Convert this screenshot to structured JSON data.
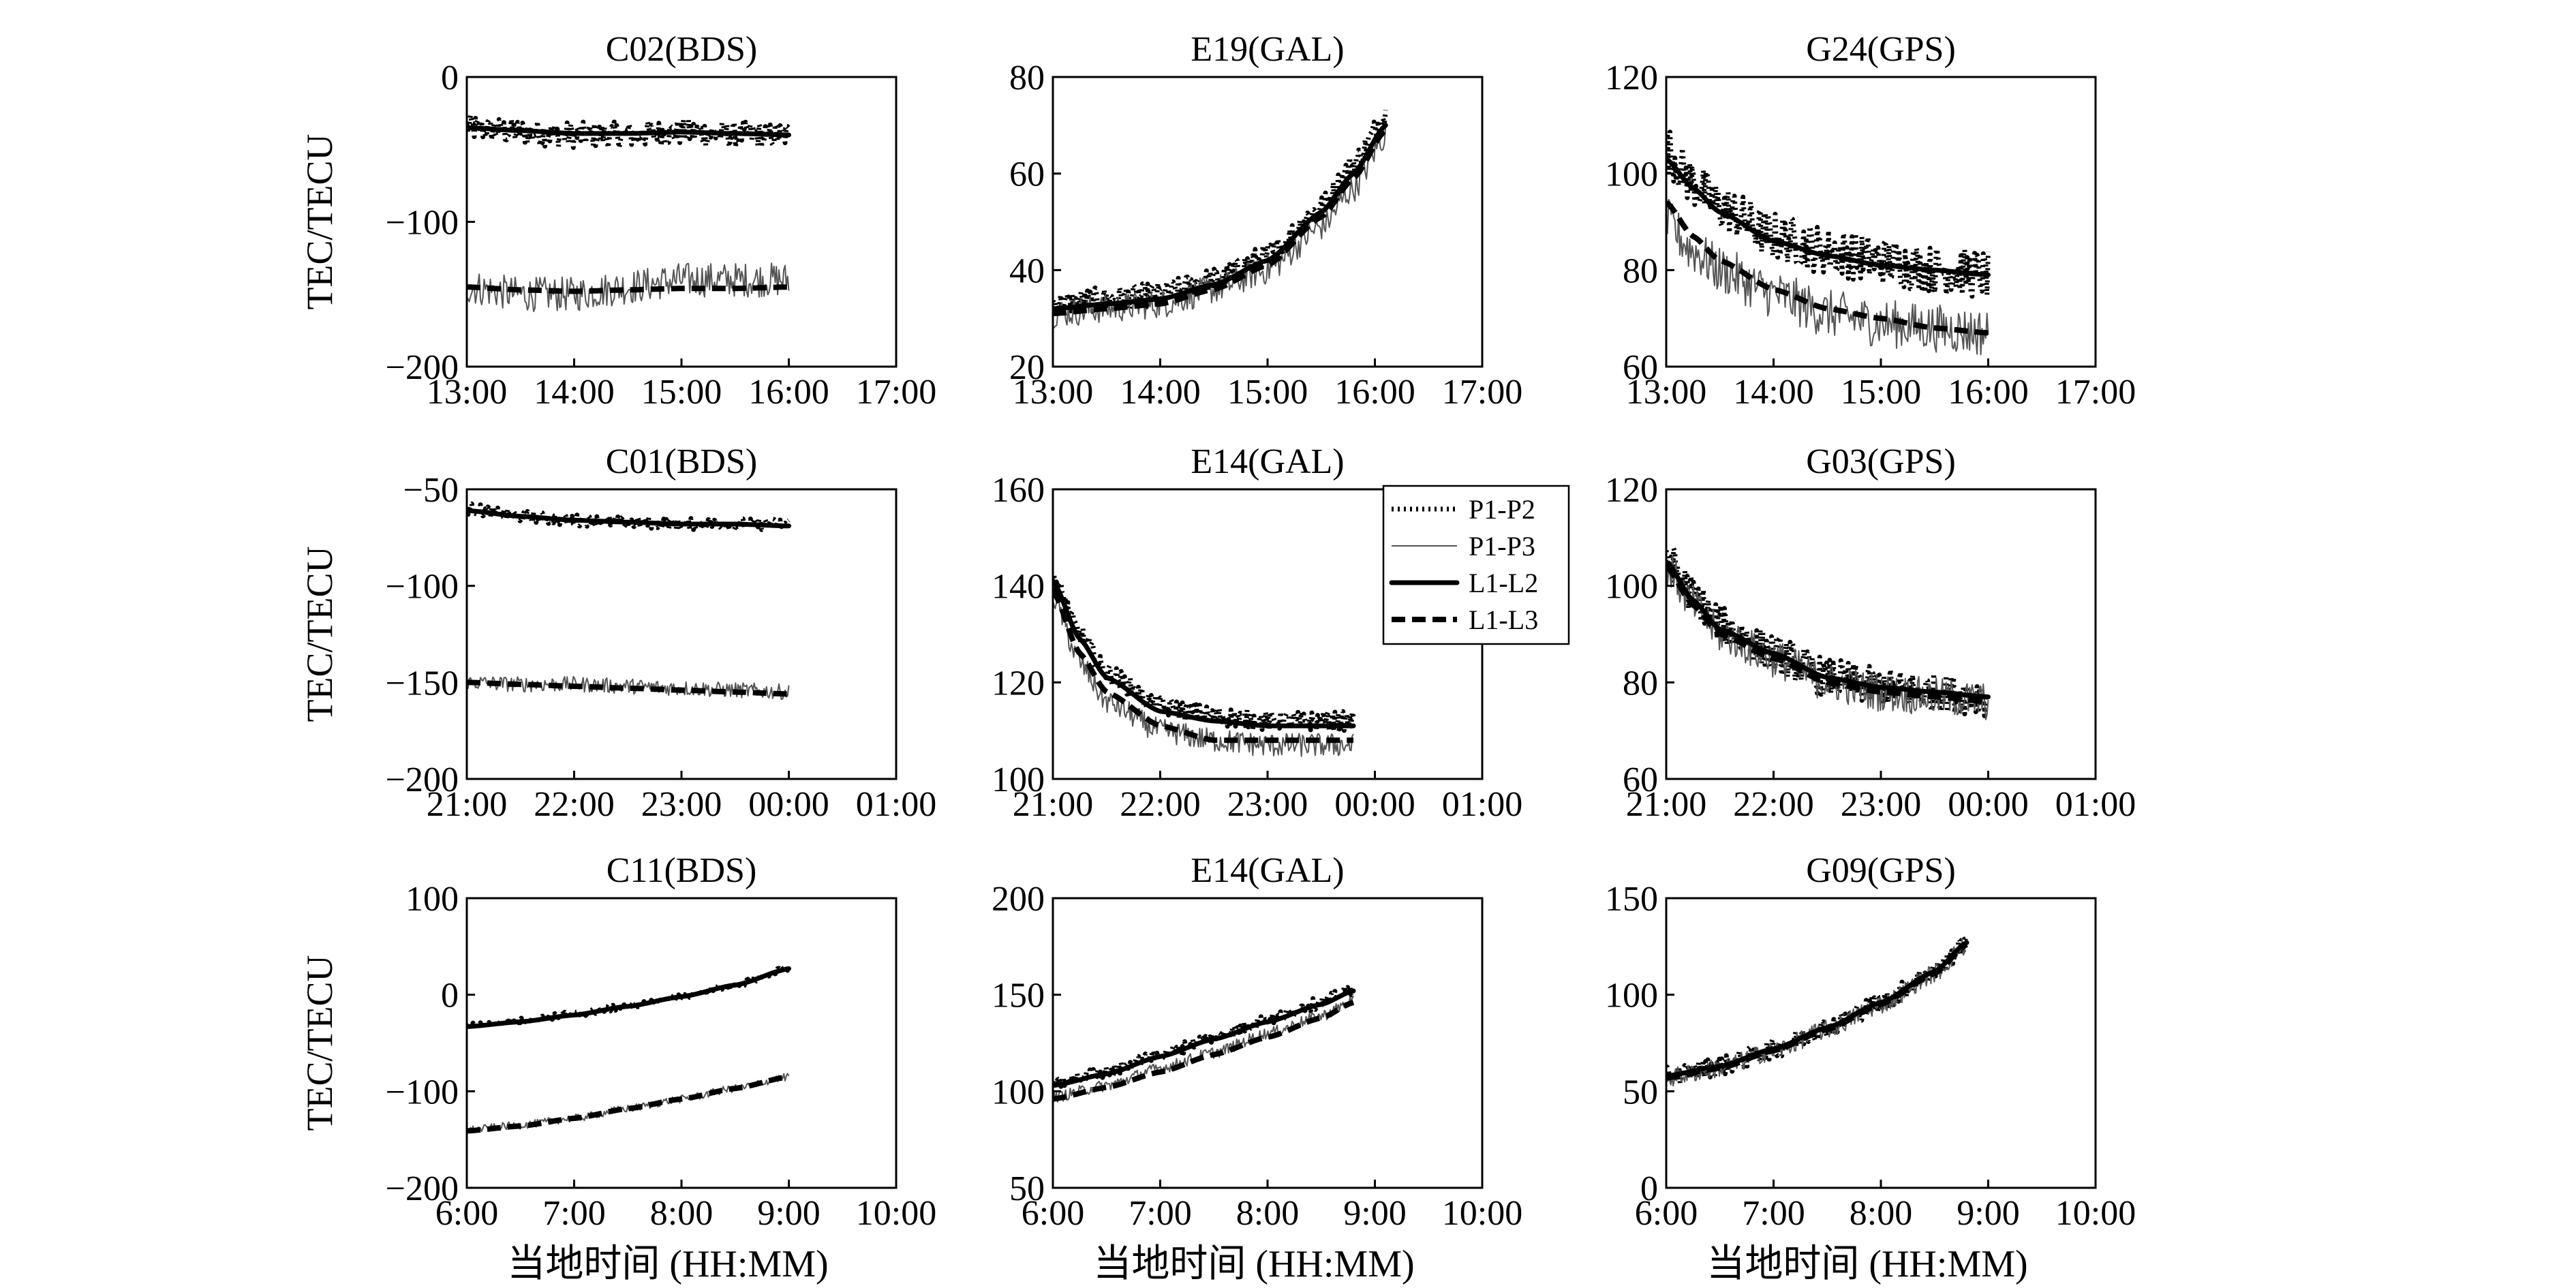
{
  "figure": {
    "x_title": "当地时间 (HH:MM)",
    "y_title": "TEC/TECU",
    "legend": [
      "P1-P2",
      "P1-P3",
      "L1-L2",
      "L1-L3"
    ]
  },
  "colors": {
    "P1-P2": "#000000",
    "P1-P3": "#555555",
    "L1-L2": "#000000",
    "L1-L3": "#000000"
  },
  "chart_data": [
    {
      "type": "line",
      "title": "C02(BDS)",
      "ylabel": "TEC/TECU",
      "xlabel": "",
      "xlim": [
        0,
        4
      ],
      "ylim": [
        -200,
        0
      ],
      "xticks": [
        0,
        1,
        2,
        3,
        4
      ],
      "xticklabels": [
        "13:00",
        "14:00",
        "15:00",
        "16:00",
        "17:00"
      ],
      "yticks": [
        -200,
        -100,
        0
      ],
      "yticklabels": [
        "−200",
        "−100",
        "0"
      ],
      "legend": false,
      "series": [
        {
          "name": "P1-P2",
          "x": [
            0,
            0.5,
            1,
            1.5,
            2,
            2.5,
            3
          ],
          "y": [
            -35,
            -38,
            -40,
            -40,
            -38,
            -40,
            -40
          ],
          "noise": 9
        },
        {
          "name": "P1-P3",
          "x": [
            0,
            0.5,
            1,
            1.5,
            2,
            2.5,
            3
          ],
          "y": [
            -145,
            -150,
            -150,
            -145,
            -140,
            -140,
            -140
          ],
          "noise": 12
        },
        {
          "name": "L1-L2",
          "x": [
            0,
            0.5,
            1,
            1.5,
            2,
            2.5,
            3
          ],
          "y": [
            -35,
            -37,
            -39,
            -39,
            -38,
            -39,
            -40
          ],
          "noise": 0
        },
        {
          "name": "L1-L3",
          "x": [
            0,
            0.5,
            1,
            1.5,
            2,
            2.5,
            3
          ],
          "y": [
            -145,
            -147,
            -148,
            -147,
            -146,
            -146,
            -145
          ],
          "noise": 0
        }
      ]
    },
    {
      "type": "line",
      "title": "E19(GAL)",
      "ylabel": "",
      "xlabel": "",
      "xlim": [
        0,
        4
      ],
      "ylim": [
        20,
        80
      ],
      "xticks": [
        0,
        1,
        2,
        3,
        4
      ],
      "xticklabels": [
        "13:00",
        "14:00",
        "15:00",
        "16:00",
        "17:00"
      ],
      "yticks": [
        20,
        40,
        60,
        80
      ],
      "yticklabels": [
        "20",
        "40",
        "60",
        "80"
      ],
      "legend": false,
      "series": [
        {
          "name": "P1-P2",
          "x": [
            0,
            0.5,
            1,
            1.5,
            2,
            2.5,
            2.8,
            3.1
          ],
          "y": [
            33,
            34,
            35,
            38,
            43,
            53,
            62,
            72
          ],
          "noise": 2.5
        },
        {
          "name": "P1-P3",
          "x": [
            0,
            0.5,
            1,
            1.5,
            2,
            2.5,
            2.8,
            3.1
          ],
          "y": [
            31,
            32,
            33,
            36,
            40,
            49,
            57,
            68
          ],
          "noise": 3
        },
        {
          "name": "L1-L2",
          "x": [
            0,
            0.5,
            1,
            1.5,
            2,
            2.5,
            2.8,
            3.1
          ],
          "y": [
            32,
            33,
            34,
            37,
            42,
            52,
            60,
            70
          ],
          "noise": 0
        },
        {
          "name": "L1-L3",
          "x": [
            0,
            0.5,
            1,
            1.5,
            2,
            2.5,
            2.8,
            3.1
          ],
          "y": [
            31,
            32,
            33,
            36,
            41,
            51,
            59,
            69
          ],
          "noise": 0
        }
      ]
    },
    {
      "type": "line",
      "title": "G24(GPS)",
      "ylabel": "",
      "xlabel": "",
      "xlim": [
        0,
        4
      ],
      "ylim": [
        60,
        120
      ],
      "xticks": [
        0,
        1,
        2,
        3,
        4
      ],
      "xticklabels": [
        "13:00",
        "14:00",
        "15:00",
        "16:00",
        "17:00"
      ],
      "yticks": [
        60,
        80,
        100,
        120
      ],
      "yticklabels": [
        "60",
        "80",
        "100",
        "120"
      ],
      "legend": false,
      "series": [
        {
          "name": "P1-P2",
          "x": [
            0,
            0.25,
            0.5,
            1,
            1.5,
            2,
            2.5,
            3
          ],
          "y": [
            105,
            98,
            93,
            87,
            84,
            82,
            80,
            79
          ],
          "noise": 5
        },
        {
          "name": "P1-P3",
          "x": [
            0,
            0.25,
            0.5,
            1,
            1.5,
            2,
            2.5,
            3
          ],
          "y": [
            90,
            84,
            80,
            75,
            71,
            69,
            68,
            67
          ],
          "noise": 5
        },
        {
          "name": "L1-L2",
          "x": [
            0,
            0.25,
            0.5,
            1,
            1.5,
            2,
            2.5,
            3
          ],
          "y": [
            103,
            97,
            92,
            86,
            83,
            81,
            80,
            79
          ],
          "noise": 0
        },
        {
          "name": "L1-L3",
          "x": [
            0,
            0.25,
            0.5,
            1,
            1.5,
            2,
            2.5,
            3
          ],
          "y": [
            94,
            87,
            82,
            76,
            72,
            70,
            68,
            67
          ],
          "noise": 0
        }
      ]
    },
    {
      "type": "line",
      "title": "C01(BDS)",
      "ylabel": "TEC/TECU",
      "xlabel": "",
      "xlim": [
        0,
        4
      ],
      "ylim": [
        -200,
        -50
      ],
      "xticks": [
        0,
        1,
        2,
        3,
        4
      ],
      "xticklabels": [
        "21:00",
        "22:00",
        "23:00",
        "00:00",
        "01:00"
      ],
      "yticks": [
        -200,
        -150,
        -100,
        -50
      ],
      "yticklabels": [
        "−200",
        "−150",
        "−100",
        "−50"
      ],
      "legend": false,
      "series": [
        {
          "name": "P1-P2",
          "x": [
            0,
            0.5,
            1,
            1.5,
            2,
            2.5,
            3
          ],
          "y": [
            -60,
            -64,
            -66,
            -67,
            -68,
            -68,
            -68
          ],
          "noise": 3
        },
        {
          "name": "P1-P3",
          "x": [
            0,
            0.5,
            1,
            1.5,
            2,
            2.5,
            3
          ],
          "y": [
            -150,
            -151,
            -151,
            -152,
            -153,
            -154,
            -155
          ],
          "noise": 4
        },
        {
          "name": "L1-L2",
          "x": [
            0,
            0.5,
            1,
            1.5,
            2,
            2.5,
            3
          ],
          "y": [
            -61,
            -64,
            -66,
            -67,
            -68,
            -68,
            -69
          ],
          "noise": 0
        },
        {
          "name": "L1-L3",
          "x": [
            0,
            0.5,
            1,
            1.5,
            2,
            2.5,
            3
          ],
          "y": [
            -150,
            -151,
            -152,
            -153,
            -154,
            -155,
            -156
          ],
          "noise": 0
        }
      ]
    },
    {
      "type": "line",
      "title": "E14(GAL)",
      "ylabel": "",
      "xlabel": "",
      "xlim": [
        0,
        4
      ],
      "ylim": [
        100,
        160
      ],
      "xticks": [
        0,
        1,
        2,
        3,
        4
      ],
      "xticklabels": [
        "21:00",
        "22:00",
        "23:00",
        "00:00",
        "01:00"
      ],
      "yticks": [
        100,
        120,
        140,
        160
      ],
      "yticklabels": [
        "100",
        "120",
        "140",
        "160"
      ],
      "legend": true,
      "series": [
        {
          "name": "P1-P2",
          "x": [
            0,
            0.25,
            0.5,
            1,
            1.5,
            2,
            2.5,
            2.8
          ],
          "y": [
            142,
            130,
            122,
            115,
            113,
            112,
            112,
            112
          ],
          "noise": 2
        },
        {
          "name": "P1-P3",
          "x": [
            0,
            0.25,
            0.5,
            1,
            1.5,
            2,
            2.5,
            2.8
          ],
          "y": [
            138,
            124,
            116,
            110,
            108,
            107,
            107,
            107
          ],
          "noise": 2.5
        },
        {
          "name": "L1-L2",
          "x": [
            0,
            0.25,
            0.5,
            1,
            1.5,
            2,
            2.5,
            2.8
          ],
          "y": [
            141,
            129,
            121,
            114,
            112,
            111,
            111,
            111
          ],
          "noise": 0
        },
        {
          "name": "L1-L3",
          "x": [
            0,
            0.25,
            0.5,
            1,
            1.5,
            2,
            2.5,
            2.8
          ],
          "y": [
            139,
            126,
            118,
            111,
            108,
            108,
            108,
            108
          ],
          "noise": 0
        }
      ]
    },
    {
      "type": "line",
      "title": "G03(GPS)",
      "ylabel": "",
      "xlabel": "",
      "xlim": [
        0,
        4
      ],
      "ylim": [
        60,
        120
      ],
      "xticks": [
        0,
        1,
        2,
        3,
        4
      ],
      "xticklabels": [
        "21:00",
        "22:00",
        "23:00",
        "00:00",
        "01:00"
      ],
      "yticks": [
        60,
        80,
        100,
        120
      ],
      "yticklabels": [
        "60",
        "80",
        "100",
        "120"
      ],
      "legend": false,
      "series": [
        {
          "name": "P1-P2",
          "x": [
            0,
            0.25,
            0.5,
            1,
            1.5,
            2,
            2.5,
            3
          ],
          "y": [
            106,
            98,
            92,
            86,
            81,
            79,
            78,
            77
          ],
          "noise": 4
        },
        {
          "name": "P1-P3",
          "x": [
            0,
            0.25,
            0.5,
            1,
            1.5,
            2,
            2.5,
            3
          ],
          "y": [
            104,
            96,
            90,
            85,
            80,
            78,
            77,
            76
          ],
          "noise": 4
        },
        {
          "name": "L1-L2",
          "x": [
            0,
            0.25,
            0.5,
            1,
            1.5,
            2,
            2.5,
            3
          ],
          "y": [
            105,
            97,
            91,
            86,
            81,
            79,
            78,
            77
          ],
          "noise": 0
        },
        {
          "name": "L1-L3",
          "x": [
            0,
            0.25,
            0.5,
            1,
            1.5,
            2,
            2.5,
            3
          ],
          "y": [
            104,
            96,
            90,
            85,
            80,
            78,
            77,
            76
          ],
          "noise": 0
        }
      ]
    },
    {
      "type": "line",
      "title": "C11(BDS)",
      "ylabel": "TEC/TECU",
      "xlabel": "当地时间 (HH:MM)",
      "xlim": [
        0,
        4
      ],
      "ylim": [
        -200,
        100
      ],
      "xticks": [
        0,
        1,
        2,
        3,
        4
      ],
      "xticklabels": [
        "6:00",
        "7:00",
        "8:00",
        "9:00",
        "10:00"
      ],
      "yticks": [
        -200,
        -100,
        0,
        100
      ],
      "yticklabels": [
        "−200",
        "−100",
        "0",
        "100"
      ],
      "legend": false,
      "series": [
        {
          "name": "P1-P2",
          "x": [
            0,
            0.5,
            1,
            1.5,
            2,
            2.5,
            3
          ],
          "y": [
            -32,
            -27,
            -20,
            -12,
            -2,
            10,
            27
          ],
          "noise": 3
        },
        {
          "name": "P1-P3",
          "x": [
            0,
            0.5,
            1,
            1.5,
            2,
            2.5,
            3
          ],
          "y": [
            -140,
            -135,
            -128,
            -118,
            -108,
            -97,
            -85
          ],
          "noise": 4
        },
        {
          "name": "L1-L2",
          "x": [
            0,
            0.5,
            1,
            1.5,
            2,
            2.5,
            3
          ],
          "y": [
            -33,
            -28,
            -21,
            -12,
            -2,
            10,
            27
          ],
          "noise": 0
        },
        {
          "name": "L1-L3",
          "x": [
            0,
            0.5,
            1,
            1.5,
            2,
            2.5,
            3
          ],
          "y": [
            -141,
            -136,
            -128,
            -118,
            -108,
            -97,
            -85
          ],
          "noise": 0
        }
      ]
    },
    {
      "type": "line",
      "title": "E14(GAL)",
      "ylabel": "",
      "xlabel": "当地时间 (HH:MM)",
      "xlim": [
        0,
        4
      ],
      "ylim": [
        50,
        200
      ],
      "xticks": [
        0,
        1,
        2,
        3,
        4
      ],
      "xticklabels": [
        "6:00",
        "7:00",
        "8:00",
        "9:00",
        "10:00"
      ],
      "yticks": [
        50,
        100,
        150,
        200
      ],
      "yticklabels": [
        "50",
        "100",
        "150",
        "200"
      ],
      "legend": false,
      "series": [
        {
          "name": "P1-P2",
          "x": [
            0,
            0.5,
            1,
            1.5,
            2,
            2.5,
            2.8
          ],
          "y": [
            104,
            110,
            119,
            128,
            137,
            146,
            153
          ],
          "noise": 3
        },
        {
          "name": "P1-P3",
          "x": [
            0,
            0.5,
            1,
            1.5,
            2,
            2.5,
            2.8
          ],
          "y": [
            97,
            103,
            112,
            120,
            130,
            139,
            147
          ],
          "noise": 3
        },
        {
          "name": "L1-L2",
          "x": [
            0,
            0.5,
            1,
            1.5,
            2,
            2.5,
            2.8
          ],
          "y": [
            103,
            109,
            118,
            127,
            136,
            145,
            152
          ],
          "noise": 0
        },
        {
          "name": "L1-L3",
          "x": [
            0,
            0.5,
            1,
            1.5,
            2,
            2.5,
            2.8
          ],
          "y": [
            96,
            102,
            110,
            119,
            128,
            138,
            146
          ],
          "noise": 0
        }
      ]
    },
    {
      "type": "line",
      "title": "G09(GPS)",
      "ylabel": "",
      "xlabel": "当地时间 (HH:MM)",
      "xlim": [
        0,
        4
      ],
      "ylim": [
        0,
        150
      ],
      "xticks": [
        0,
        1,
        2,
        3,
        4
      ],
      "xticklabels": [
        "6:00",
        "7:00",
        "8:00",
        "9:00",
        "10:00"
      ],
      "yticks": [
        0,
        50,
        100,
        150
      ],
      "yticklabels": [
        "0",
        "50",
        "100",
        "150"
      ],
      "legend": false,
      "series": [
        {
          "name": "P1-P2",
          "x": [
            0,
            0.5,
            1,
            1.5,
            2,
            2.5,
            2.8
          ],
          "y": [
            58,
            63,
            72,
            83,
            96,
            112,
            127
          ],
          "noise": 5
        },
        {
          "name": "P1-P3",
          "x": [
            0,
            0.5,
            1,
            1.5,
            2,
            2.5,
            2.8
          ],
          "y": [
            57,
            62,
            71,
            82,
            95,
            111,
            126
          ],
          "noise": 5
        },
        {
          "name": "L1-L2",
          "x": [
            0,
            0.5,
            1,
            1.5,
            2,
            2.5,
            2.8
          ],
          "y": [
            58,
            63,
            72,
            83,
            96,
            112,
            127
          ],
          "noise": 0
        },
        {
          "name": "L1-L3",
          "x": [
            0,
            0.5,
            1,
            1.5,
            2,
            2.5,
            2.8
          ],
          "y": [
            57,
            62,
            71,
            82,
            95,
            111,
            126
          ],
          "noise": 0
        }
      ]
    }
  ]
}
